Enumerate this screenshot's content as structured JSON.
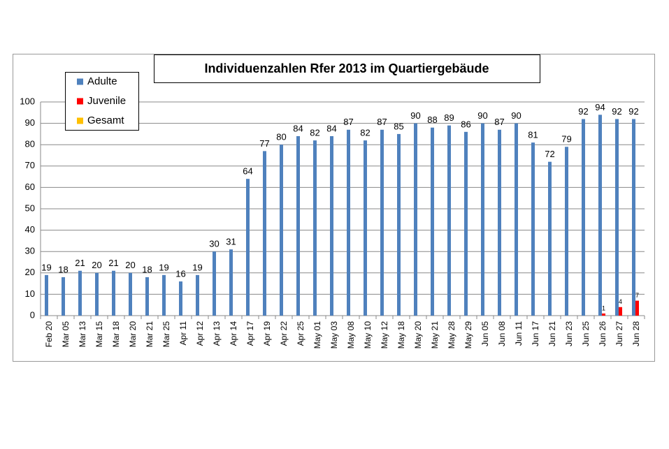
{
  "chart_data": {
    "type": "bar",
    "title": "Individuenzahlen Rfer 2013 im Quartiergebäude",
    "categories": [
      "Feb 20",
      "Mar 05",
      "Mar 13",
      "Mar 15",
      "Mar 18",
      "Mar 20",
      "Mar 21",
      "Mar 25",
      "Apr 11",
      "Apr 12",
      "Apr 13",
      "Apr 14",
      "Apr 17",
      "Apr 19",
      "Apr 22",
      "Apr 25",
      "May 01",
      "May 03",
      "May 08",
      "May 10",
      "May 12",
      "May 18",
      "May 20",
      "May 21",
      "May 28",
      "May 29",
      "Jun 05",
      "Jun 08",
      "Jun 11",
      "Jun 17",
      "Jun 21",
      "Jun 23",
      "Jun 25",
      "Jun 26",
      "Jun 27",
      "Jun 28"
    ],
    "series": [
      {
        "name": "Adulte",
        "color": "#4f81bd",
        "values": [
          19,
          18,
          21,
          20,
          21,
          20,
          18,
          19,
          16,
          19,
          30,
          31,
          64,
          77,
          80,
          84,
          82,
          84,
          87,
          82,
          87,
          85,
          90,
          88,
          89,
          86,
          90,
          87,
          90,
          81,
          72,
          79,
          92,
          94,
          92,
          92
        ]
      },
      {
        "name": "Juvenile",
        "color": "#ff0000",
        "values": [
          null,
          null,
          null,
          null,
          null,
          null,
          null,
          null,
          null,
          null,
          null,
          null,
          null,
          null,
          null,
          null,
          null,
          null,
          null,
          null,
          null,
          null,
          null,
          null,
          null,
          null,
          null,
          null,
          null,
          null,
          null,
          null,
          null,
          1,
          4,
          7
        ]
      },
      {
        "name": "Gesamt",
        "color": "#ffc000",
        "values": [
          null,
          null,
          null,
          null,
          null,
          null,
          null,
          null,
          null,
          null,
          null,
          null,
          null,
          null,
          null,
          null,
          null,
          null,
          null,
          null,
          null,
          null,
          null,
          null,
          null,
          null,
          null,
          null,
          null,
          null,
          null,
          null,
          null,
          null,
          null,
          null
        ]
      }
    ],
    "ylim": [
      0,
      100
    ],
    "yticks": [
      0,
      10,
      20,
      30,
      40,
      50,
      60,
      70,
      80,
      90,
      100
    ],
    "grid": true,
    "legend": "top-left"
  }
}
